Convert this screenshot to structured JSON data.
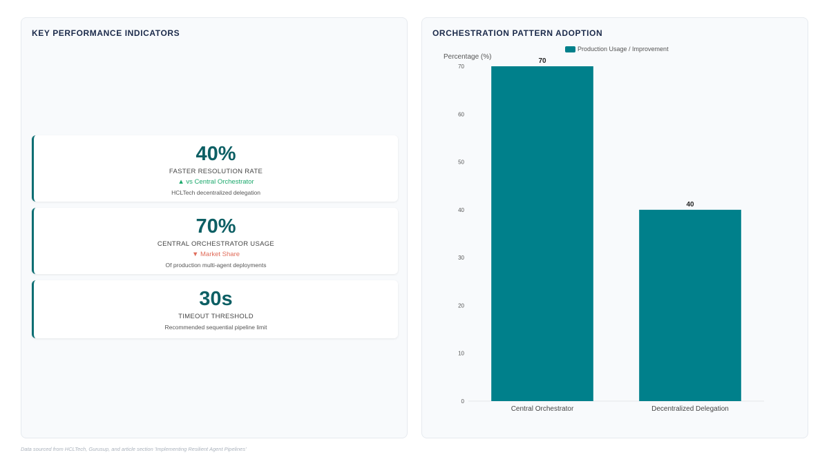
{
  "left_panel": {
    "title": "KEY PERFORMANCE INDICATORS",
    "kpis": [
      {
        "value": "40%",
        "label": "FASTER RESOLUTION RATE",
        "trend": "▲ vs Central Orchestrator",
        "trend_dir": "up",
        "sub": "HCLTech decentralized delegation"
      },
      {
        "value": "70%",
        "label": "CENTRAL ORCHESTRATOR USAGE",
        "trend": "▼ Market Share",
        "trend_dir": "down",
        "sub": "Of production multi-agent deployments"
      },
      {
        "value": "30s",
        "label": "TIMEOUT THRESHOLD",
        "trend": "",
        "trend_dir": "",
        "sub": "Recommended sequential pipeline limit"
      }
    ]
  },
  "right_panel": {
    "title": "ORCHESTRATION PATTERN ADOPTION"
  },
  "chart_data": {
    "type": "bar",
    "categories": [
      "Central Orchestrator",
      "Decentralized Delegation"
    ],
    "series": [
      {
        "name": "Production Usage / Improvement",
        "values": [
          70,
          40
        ],
        "color": "#00808b"
      }
    ],
    "ylabel": "Percentage (%)",
    "ylim": [
      0,
      70
    ],
    "yticks": [
      0,
      10,
      20,
      30,
      40,
      50,
      60,
      70
    ],
    "data_labels": [
      "70",
      "40"
    ],
    "legend": "top-center",
    "grid": false
  },
  "footnote": "Data sourced from HCLTech, Gurusup, and article section 'Implementing Resilient Agent Pipelines'"
}
